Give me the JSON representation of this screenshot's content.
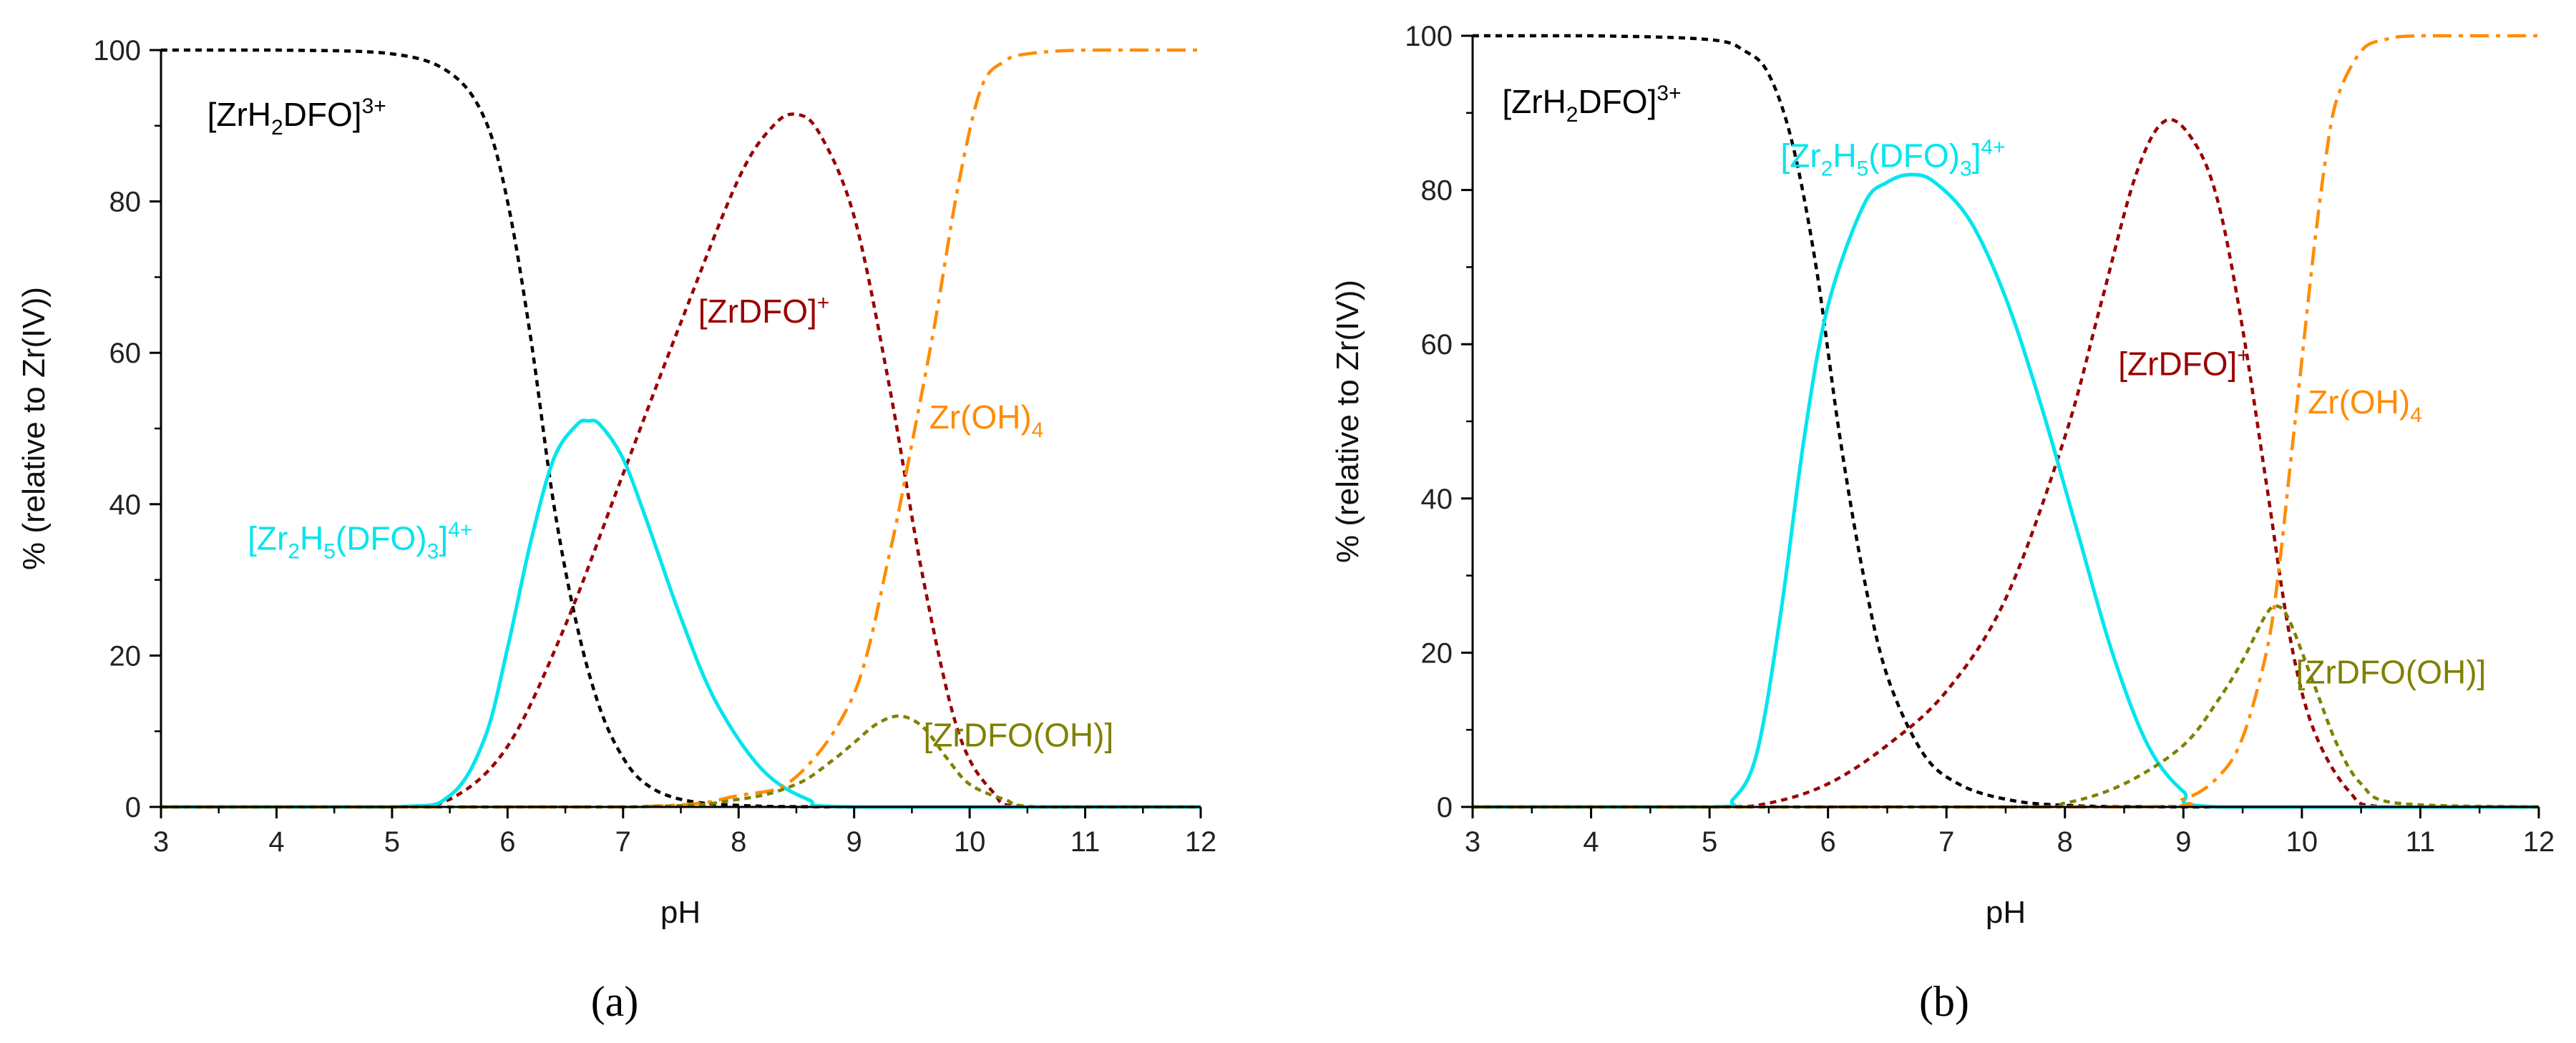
{
  "colors": {
    "ZrH2DFO": "#000000",
    "ZrDFO": "#990000",
    "Zr2H5DFO3": "#00e5ee",
    "ZrOH4": "#ff8c00",
    "ZrDFOOH": "#808000"
  },
  "chart_data": [
    {
      "type": "line",
      "panel_label": "(a)",
      "xlabel": "pH",
      "ylabel": "% (relative to Zr(IV))",
      "xlim": [
        3,
        12
      ],
      "ylim": [
        0,
        100
      ],
      "x_ticks": [
        "3",
        "4",
        "5",
        "6",
        "7",
        "8",
        "9",
        "10",
        "11",
        "12"
      ],
      "y_ticks": [
        "0",
        "20",
        "40",
        "60",
        "80",
        "100"
      ],
      "grid": false,
      "labels": {
        "ZrH2DFO": {
          "base1": "[ZrH",
          "sub1": "2",
          "mid": "DFO]",
          "sup": "3+"
        },
        "ZrDFO": {
          "base": "[ZrDFO]",
          "sup": "+"
        },
        "Zr2H5DFO3": {
          "b1": "[Zr",
          "s1": "2",
          "b2": "H",
          "s2": "5",
          "b3": "(DFO)",
          "s3": "3",
          "b4": "]",
          "sup": "4+"
        },
        "ZrOH4": {
          "base": "Zr(OH)",
          "sub": "4"
        },
        "ZrDFOOH": {
          "text": "[ZrDFO(OH)]"
        }
      },
      "series": [
        {
          "key": "ZrH2DFO",
          "name": "[ZrH2DFO]3+",
          "style": "dotted",
          "x": [
            3,
            4,
            5,
            5.5,
            5.8,
            6.0,
            6.2,
            6.4,
            6.6,
            6.8,
            7.0,
            7.2,
            7.5,
            8,
            9,
            12
          ],
          "values": [
            100,
            100,
            99.5,
            97,
            91,
            80,
            62,
            40,
            24,
            13,
            6.5,
            3,
            1,
            0.2,
            0,
            0
          ]
        },
        {
          "key": "ZrDFO",
          "name": "[ZrDFO]+",
          "style": "dotted",
          "x": [
            3,
            5,
            5.5,
            6.0,
            6.5,
            7.0,
            7.5,
            8.0,
            8.3,
            8.5,
            8.7,
            9.0,
            9.3,
            9.6,
            9.9,
            10.2,
            10.5,
            12
          ],
          "values": [
            0,
            0,
            1,
            8,
            24,
            44,
            64,
            83,
            90,
            91.5,
            89,
            78,
            56,
            30,
            10,
            2,
            0,
            0
          ]
        },
        {
          "key": "Zr2H5DFO3",
          "name": "[Zr2H5(DFO)3]4+",
          "style": "solid",
          "x": [
            3,
            5,
            5.5,
            5.8,
            6.0,
            6.2,
            6.4,
            6.6,
            6.7,
            6.8,
            7.0,
            7.2,
            7.5,
            7.8,
            8.2,
            8.6,
            9.0,
            12
          ],
          "values": [
            0,
            0,
            1.5,
            9,
            21,
            35,
            46,
            50.5,
            51,
            50.5,
            46,
            38,
            25,
            14,
            5,
            1,
            0,
            0
          ]
        },
        {
          "key": "ZrOH4",
          "name": "Zr(OH)4",
          "style": "dashdot",
          "x": [
            3,
            7,
            8,
            8.5,
            9.0,
            9.3,
            9.5,
            9.7,
            9.9,
            10.1,
            10.3,
            10.5,
            11,
            12
          ],
          "values": [
            0,
            0,
            1.5,
            4,
            15,
            33,
            48,
            64,
            82,
            95,
            98.5,
            99.5,
            100,
            100
          ]
        },
        {
          "key": "ZrDFOOH",
          "name": "[ZrDFO(OH)]",
          "style": "dotted",
          "x": [
            3,
            7,
            8,
            8.5,
            8.8,
            9.0,
            9.2,
            9.4,
            9.6,
            9.8,
            10.0,
            10.3,
            10.6,
            12
          ],
          "values": [
            0,
            0,
            1,
            3,
            6,
            8.5,
            11,
            12,
            10.5,
            6.5,
            3,
            1,
            0,
            0
          ]
        }
      ],
      "annotations": [
        {
          "key": "ZrH2DFO",
          "x": 3.4,
          "y": 90
        },
        {
          "key": "ZrDFO",
          "x": 7.65,
          "y": 64
        },
        {
          "key": "Zr2H5DFO3",
          "x": 3.75,
          "y": 34
        },
        {
          "key": "ZrOH4",
          "x": 9.65,
          "y": 50
        },
        {
          "key": "ZrDFOOH",
          "x": 9.6,
          "y": 8
        }
      ]
    },
    {
      "type": "line",
      "panel_label": "(b)",
      "xlabel": "pH",
      "ylabel": "% (relative to Zr(IV))",
      "xlim": [
        3,
        12
      ],
      "ylim": [
        0,
        100
      ],
      "x_ticks": [
        "3",
        "4",
        "5",
        "6",
        "7",
        "8",
        "9",
        "10",
        "11",
        "12"
      ],
      "y_ticks": [
        "0",
        "20",
        "40",
        "60",
        "80",
        "100"
      ],
      "grid": false,
      "labels": {
        "ZrH2DFO": {
          "base1": "[ZrH",
          "sub1": "2",
          "mid": "DFO]",
          "sup": "3+"
        },
        "ZrDFO": {
          "base": "[ZrDFO]",
          "sup": "+"
        },
        "Zr2H5DFO3": {
          "b1": "[Zr",
          "s1": "2",
          "b2": "H",
          "s2": "5",
          "b3": "(DFO)",
          "s3": "3",
          "b4": "]",
          "sup": "4+"
        },
        "ZrOH4": {
          "base": "Zr(OH)",
          "sub": "4"
        },
        "ZrDFOOH": {
          "text": "[ZrDFO(OH)]"
        }
      },
      "series": [
        {
          "key": "ZrH2DFO",
          "name": "[ZrH2DFO]3+",
          "style": "dotted",
          "x": [
            3,
            4,
            5,
            5.3,
            5.5,
            5.7,
            5.9,
            6.1,
            6.3,
            6.5,
            6.8,
            7.1,
            7.5,
            8,
            9,
            12
          ],
          "values": [
            100,
            100,
            99.5,
            98,
            95,
            86,
            70,
            48,
            30,
            17,
            7,
            3,
            1,
            0.2,
            0,
            0
          ]
        },
        {
          "key": "ZrDFO",
          "name": "[ZrDFO]+",
          "style": "dotted",
          "x": [
            3,
            5,
            5.5,
            6.0,
            6.5,
            7.0,
            7.5,
            8.0,
            8.3,
            8.6,
            8.85,
            9.1,
            9.3,
            9.5,
            9.7,
            9.9,
            10.1,
            10.4,
            10.7,
            12
          ],
          "values": [
            0,
            0,
            0.5,
            3,
            8,
            15,
            27,
            48,
            65,
            82,
            89,
            86,
            78,
            62,
            42,
            22,
            10,
            2,
            0,
            0
          ]
        },
        {
          "key": "Zr2H5DFO3",
          "name": "[Zr2H5(DFO)3]4+",
          "style": "solid",
          "x": [
            3,
            5,
            5.2,
            5.4,
            5.6,
            5.8,
            6.0,
            6.3,
            6.5,
            6.7,
            6.9,
            7.2,
            7.5,
            7.8,
            8.1,
            8.4,
            8.7,
            9.0,
            9.3,
            12
          ],
          "values": [
            0,
            0,
            1,
            7,
            25,
            48,
            65,
            78,
            81,
            82,
            81,
            76,
            66,
            52,
            36,
            20,
            8,
            2,
            0,
            0
          ]
        },
        {
          "key": "ZrOH4",
          "name": "Zr(OH)4",
          "style": "dashdot",
          "x": [
            3,
            8.5,
            9.0,
            9.3,
            9.5,
            9.7,
            9.8,
            9.9,
            10.0,
            10.1,
            10.2,
            10.3,
            10.5,
            10.7,
            11,
            12
          ],
          "values": [
            0,
            0,
            1,
            4,
            9,
            20,
            30,
            44,
            58,
            72,
            84,
            92,
            98,
            99.5,
            100,
            100
          ]
        },
        {
          "key": "ZrDFOOH",
          "name": "[ZrDFO(OH)]",
          "style": "dotted",
          "x": [
            3,
            7.5,
            8.0,
            8.5,
            9.0,
            9.3,
            9.5,
            9.7,
            9.8,
            9.9,
            10.1,
            10.3,
            10.5,
            10.8,
            12
          ],
          "values": [
            0,
            0,
            0.5,
            3,
            8,
            14,
            19,
            25,
            26,
            24,
            16,
            8,
            3,
            0.5,
            0
          ]
        }
      ],
      "annotations": [
        {
          "key": "ZrH2DFO",
          "x": 3.25,
          "y": 90
        },
        {
          "key": "Zr2H5DFO3",
          "x": 5.6,
          "y": 83
        },
        {
          "key": "ZrDFO",
          "x": 8.45,
          "y": 56
        },
        {
          "key": "ZrOH4",
          "x": 10.05,
          "y": 51
        },
        {
          "key": "ZrDFOOH",
          "x": 9.95,
          "y": 16
        }
      ]
    }
  ]
}
